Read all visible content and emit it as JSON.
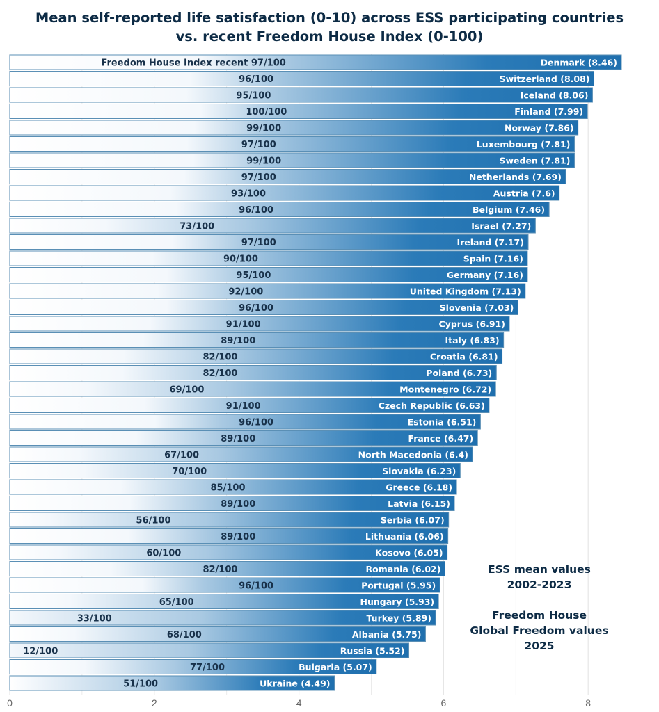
{
  "chart_data": {
    "type": "bar",
    "orientation": "horizontal",
    "title": "Mean self-reported life satisfaction (0-10) across ESS participating countries vs. recent Freedom House Index (0-100)",
    "title_lines": [
      "Mean self-reported life satisfaction (0-10) across ESS participating countries",
      "vs. recent Freedom House Index (0-100)"
    ],
    "xlabel": "",
    "ylabel": "",
    "xlim": [
      0,
      8.6
    ],
    "x_ticks": [
      0,
      2,
      4,
      6,
      8
    ],
    "grid": true,
    "first_bar_prefix": "Freedom House Index recent ",
    "fh_suffix": "/100",
    "annotation_lines": [
      "ESS mean values",
      "2002-2023",
      "",
      "Freedom House",
      "Global Freedom values",
      "2025"
    ],
    "colors": {
      "bar_dark": "#1f6fae",
      "bar_light": "#ffffff",
      "bar_edge": "#5a8fb5",
      "grid": "#e6e6e6",
      "title": "#0d2b45"
    },
    "categories": [
      "Denmark",
      "Switzerland",
      "Iceland",
      "Finland",
      "Norway",
      "Luxembourg",
      "Sweden",
      "Netherlands",
      "Austria",
      "Belgium",
      "Israel",
      "Ireland",
      "Spain",
      "Germany",
      "United Kingdom",
      "Slovenia",
      "Cyprus",
      "Italy",
      "Croatia",
      "Poland",
      "Montenegro",
      "Czech Republic",
      "Estonia",
      "France",
      "North Macedonia",
      "Slovakia",
      "Greece",
      "Latvia",
      "Serbia",
      "Lithuania",
      "Kosovo",
      "Romania",
      "Portugal",
      "Hungary",
      "Turkey",
      "Albania",
      "Russia",
      "Bulgaria",
      "Ukraine"
    ],
    "series": [
      {
        "name": "ESS mean life satisfaction (0-10)",
        "values": [
          8.46,
          8.08,
          8.06,
          7.99,
          7.86,
          7.81,
          7.81,
          7.69,
          7.6,
          7.46,
          7.27,
          7.17,
          7.16,
          7.16,
          7.13,
          7.03,
          6.91,
          6.83,
          6.81,
          6.73,
          6.72,
          6.63,
          6.51,
          6.47,
          6.4,
          6.23,
          6.18,
          6.15,
          6.07,
          6.06,
          6.05,
          6.02,
          5.95,
          5.93,
          5.89,
          5.75,
          5.52,
          5.07,
          4.49
        ],
        "value_labels": [
          "8.46",
          "8.08",
          "8.06",
          "7.99",
          "7.86",
          "7.81",
          "7.81",
          "7.69",
          "7.6",
          "7.46",
          "7.27",
          "7.17",
          "7.16",
          "7.16",
          "7.13",
          "7.03",
          "6.91",
          "6.83",
          "6.81",
          "6.73",
          "6.72",
          "6.63",
          "6.51",
          "6.47",
          "6.4",
          "6.23",
          "6.18",
          "6.15",
          "6.07",
          "6.06",
          "6.05",
          "6.02",
          "5.95",
          "5.93",
          "5.89",
          "5.75",
          "5.52",
          "5.07",
          "4.49"
        ]
      },
      {
        "name": "Freedom House Global Freedom score (0-100)",
        "values": [
          97,
          96,
          95,
          100,
          99,
          97,
          99,
          97,
          93,
          96,
          73,
          97,
          90,
          95,
          92,
          96,
          91,
          89,
          82,
          82,
          69,
          91,
          96,
          89,
          67,
          70,
          85,
          89,
          56,
          89,
          60,
          82,
          96,
          65,
          33,
          68,
          12,
          77,
          51
        ]
      }
    ]
  }
}
